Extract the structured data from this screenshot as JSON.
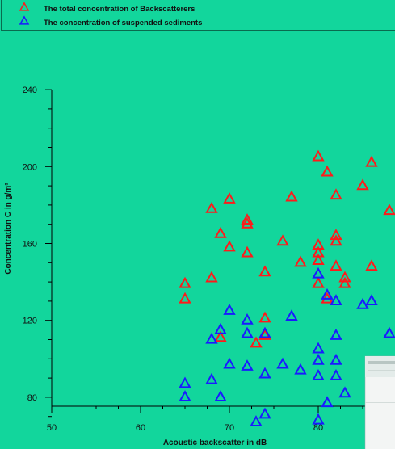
{
  "chart_data": {
    "type": "scatter",
    "title": "",
    "xlabel": "Acoustic backscatter in dB",
    "ylabel": "Concentration C in g/m³",
    "xlim": [
      50,
      90
    ],
    "ylim": [
      55,
      240
    ],
    "xticks": [
      50,
      60,
      70,
      80
    ],
    "yticks": [
      80,
      120,
      160,
      200,
      240
    ],
    "grid": false,
    "legend_position": "top",
    "colors": {
      "background": "#12d69c",
      "axis": "#000000",
      "inset": "#f3f5f4"
    },
    "series": [
      {
        "name": "The total concentration of Backscatterers",
        "marker": "triangle",
        "color": "#ff1a1a",
        "points": [
          {
            "x": 65,
            "y": 139
          },
          {
            "x": 65,
            "y": 131
          },
          {
            "x": 68,
            "y": 178
          },
          {
            "x": 68,
            "y": 142
          },
          {
            "x": 69,
            "y": 165
          },
          {
            "x": 69,
            "y": 111
          },
          {
            "x": 70,
            "y": 183
          },
          {
            "x": 70,
            "y": 158
          },
          {
            "x": 72,
            "y": 172
          },
          {
            "x": 72,
            "y": 170
          },
          {
            "x": 72,
            "y": 155
          },
          {
            "x": 73,
            "y": 108
          },
          {
            "x": 74,
            "y": 145
          },
          {
            "x": 74,
            "y": 121
          },
          {
            "x": 74,
            "y": 112
          },
          {
            "x": 76,
            "y": 161
          },
          {
            "x": 77,
            "y": 184
          },
          {
            "x": 78,
            "y": 150
          },
          {
            "x": 80,
            "y": 205
          },
          {
            "x": 80,
            "y": 159
          },
          {
            "x": 80,
            "y": 155
          },
          {
            "x": 80,
            "y": 151
          },
          {
            "x": 80,
            "y": 139
          },
          {
            "x": 81,
            "y": 197
          },
          {
            "x": 81,
            "y": 131
          },
          {
            "x": 82,
            "y": 185
          },
          {
            "x": 82,
            "y": 164
          },
          {
            "x": 82,
            "y": 161
          },
          {
            "x": 82,
            "y": 148
          },
          {
            "x": 83,
            "y": 142
          },
          {
            "x": 83,
            "y": 139
          },
          {
            "x": 85,
            "y": 190
          },
          {
            "x": 86,
            "y": 202
          },
          {
            "x": 86,
            "y": 148
          },
          {
            "x": 88,
            "y": 177
          }
        ]
      },
      {
        "name": "The concentration of suspended sediments",
        "marker": "triangle",
        "color": "#1a1aff",
        "points": [
          {
            "x": 65,
            "y": 87
          },
          {
            "x": 65,
            "y": 80
          },
          {
            "x": 68,
            "y": 110
          },
          {
            "x": 68,
            "y": 89
          },
          {
            "x": 69,
            "y": 115
          },
          {
            "x": 69,
            "y": 80
          },
          {
            "x": 70,
            "y": 125
          },
          {
            "x": 70,
            "y": 97
          },
          {
            "x": 72,
            "y": 120
          },
          {
            "x": 72,
            "y": 113
          },
          {
            "x": 72,
            "y": 96
          },
          {
            "x": 73,
            "y": 67
          },
          {
            "x": 74,
            "y": 113
          },
          {
            "x": 74,
            "y": 92
          },
          {
            "x": 74,
            "y": 71
          },
          {
            "x": 76,
            "y": 97
          },
          {
            "x": 77,
            "y": 122
          },
          {
            "x": 78,
            "y": 94
          },
          {
            "x": 80,
            "y": 144
          },
          {
            "x": 80,
            "y": 105
          },
          {
            "x": 80,
            "y": 99
          },
          {
            "x": 80,
            "y": 91
          },
          {
            "x": 80,
            "y": 68
          },
          {
            "x": 81,
            "y": 133
          },
          {
            "x": 81,
            "y": 77
          },
          {
            "x": 82,
            "y": 130
          },
          {
            "x": 82,
            "y": 112
          },
          {
            "x": 82,
            "y": 99
          },
          {
            "x": 82,
            "y": 91
          },
          {
            "x": 83,
            "y": 82
          },
          {
            "x": 85,
            "y": 128
          },
          {
            "x": 86,
            "y": 130
          },
          {
            "x": 86,
            "y": 94
          },
          {
            "x": 88,
            "y": 113
          }
        ]
      }
    ]
  }
}
